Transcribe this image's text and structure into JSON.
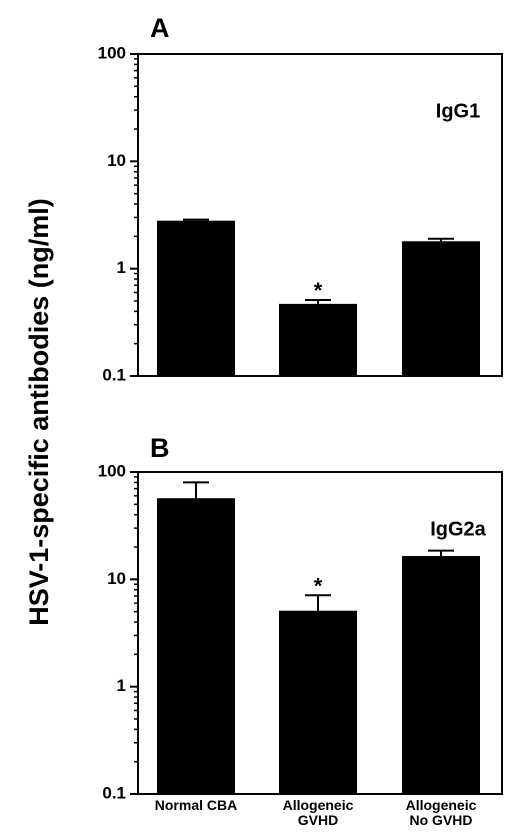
{
  "ylabel": "HSV-1-specific antibodies (ng/ml)",
  "categories": [
    "Normal CBA",
    "Allogeneic GVHD",
    "Allogeneic No GVHD"
  ],
  "category_lines": [
    [
      "Normal CBA"
    ],
    [
      "Allogeneic",
      "GVHD"
    ],
    [
      "Allogeneic",
      "No GVHD"
    ]
  ],
  "chart_data": [
    {
      "type": "bar",
      "panel": "A",
      "series_label": "IgG1",
      "categories": [
        "Normal CBA",
        "Allogeneic GVHD",
        "Allogeneic No GVHD"
      ],
      "values": [
        2.8,
        0.47,
        1.8
      ],
      "errors": [
        0.06,
        0.04,
        0.1
      ],
      "significance": [
        "",
        "*",
        ""
      ],
      "ylabel": "HSV-1-specific antibodies (ng/ml)",
      "yscale": "log",
      "ylim": [
        0.1,
        100
      ],
      "yticks": [
        0.1,
        1,
        10,
        100
      ],
      "ytick_labels": [
        "0.1",
        "1",
        "10",
        "100"
      ],
      "bar_color": "#000000"
    },
    {
      "type": "bar",
      "panel": "B",
      "series_label": "IgG2a",
      "categories": [
        "Normal CBA",
        "Allogeneic GVHD",
        "Allogeneic No GVHD"
      ],
      "values": [
        57,
        5.1,
        16.5
      ],
      "errors": [
        23,
        2.0,
        2.0
      ],
      "significance": [
        "",
        "*",
        ""
      ],
      "ylabel": "HSV-1-specific antibodies (ng/ml)",
      "yscale": "log",
      "ylim": [
        0.1,
        100
      ],
      "yticks": [
        0.1,
        1,
        10,
        100
      ],
      "ytick_labels": [
        "0.1",
        "1",
        "10",
        "100"
      ],
      "bar_color": "#000000"
    }
  ]
}
